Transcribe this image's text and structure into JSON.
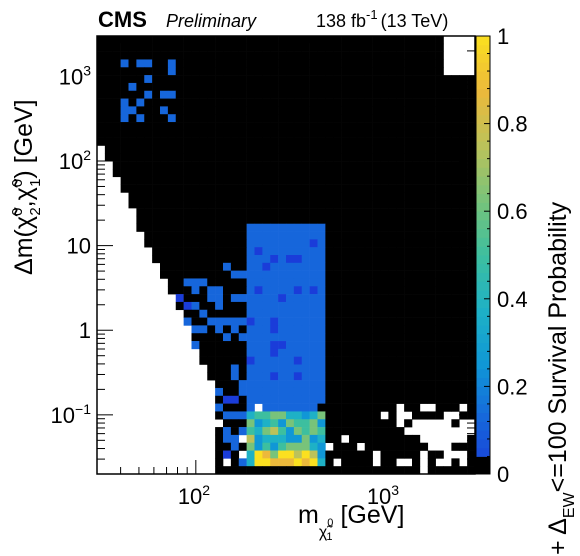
{
  "chart_data": {
    "type": "heatmap",
    "header": {
      "experiment": "CMS",
      "status": "Preliminary",
      "lumi": "138 fb",
      "lumi_exponent": "-1",
      "energy": "(13 TeV)"
    },
    "x_axis": {
      "scale": "log",
      "range": [
        30,
        3000
      ],
      "label": "m",
      "label_subscript": "χ̃",
      "label_sub_superscript": "0",
      "label_sub_subscript": "1",
      "label_unit": "[GeV]",
      "tick_labels": [
        {
          "value": 100,
          "base": "10",
          "exp": "2"
        },
        {
          "value": 1000,
          "base": "10",
          "exp": "3"
        }
      ]
    },
    "y_axis": {
      "scale": "log",
      "range": [
        0.02,
        3000
      ],
      "label": "Δm(χ̃",
      "label_sup1": "0",
      "label_sub1": "2",
      "label_mid": ",χ̃",
      "label_sup2": "0",
      "label_sub2": "1",
      "label_end": ") [GeV]",
      "tick_labels": [
        {
          "value": 0.1,
          "base": "10",
          "exp": "−1"
        },
        {
          "value": 1,
          "base": "1",
          "exp": ""
        },
        {
          "value": 10,
          "base": "10",
          "exp": ""
        },
        {
          "value": 100,
          "base": "10",
          "exp": "2"
        },
        {
          "value": 1000,
          "base": "10",
          "exp": "3"
        }
      ]
    },
    "z_axis": {
      "range": [
        0,
        1
      ],
      "label_prefix": "+ Δ",
      "label_sub": "EW",
      "label_rest": "<=100 Survival Probability",
      "tick_labels": [
        "0",
        "0.2",
        "0.4",
        "0.6",
        "0.8",
        "1"
      ],
      "tick_values": [
        0,
        0.2,
        0.4,
        0.6,
        0.8,
        1
      ]
    },
    "colors": {
      "background_scanned": "#000000",
      "unscanned": "#ffffff",
      "colormap": [
        "#000000",
        "#1a3cd9",
        "#1666db",
        "#1097d6",
        "#1eb1c6",
        "#3dbf9f",
        "#78c37a",
        "#bcc25a",
        "#ecb93b",
        "#fbe020"
      ]
    },
    "regions": {
      "note": "heatmap cells of survival probability; black = 0 probability",
      "blue_block": {
        "x_range": [
          55,
          500
        ],
        "y_range": [
          0.025,
          20
        ],
        "typical_value": 0.1
      },
      "high_block": {
        "x_range": [
          180,
          500
        ],
        "y_range": [
          0.022,
          0.12
        ],
        "typical_value": 0.5
      },
      "peak_row": {
        "x_range": [
          200,
          420
        ],
        "y_range": [
          0.022,
          0.035
        ],
        "typical_value": 0.9
      },
      "small_patch": {
        "x": [
          40,
          75
        ],
        "y_range": [
          300,
          1500
        ],
        "typical_value": 0.15
      }
    }
  }
}
